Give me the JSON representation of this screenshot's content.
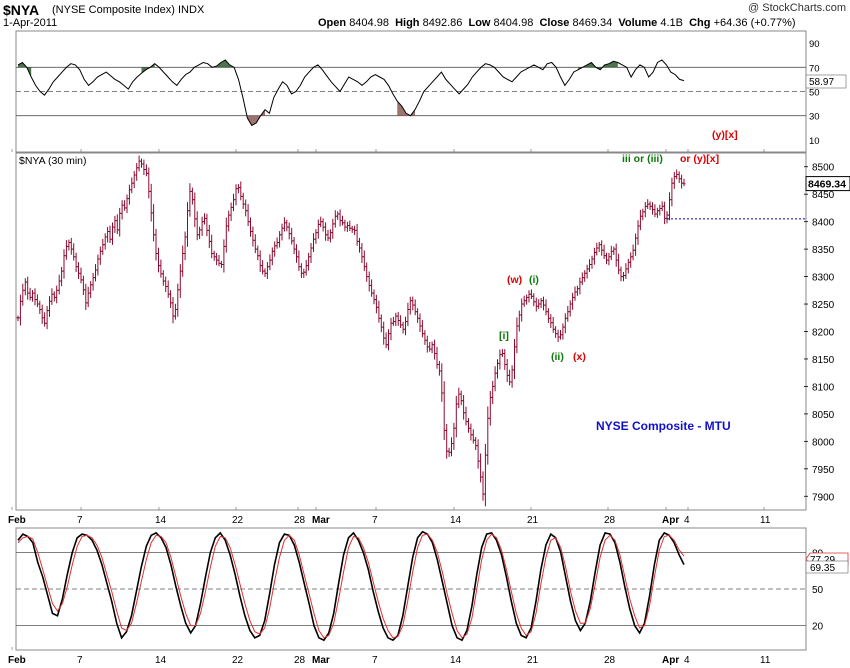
{
  "header": {
    "symbol": "$NYA",
    "name": "(NYSE Composite Index)",
    "exchange": "INDX",
    "date": "1-Apr-2011",
    "watermark": "@ StockCharts.com",
    "quote": {
      "open_label": "Open",
      "open": "8404.98",
      "high_label": "High",
      "high": "8492.86",
      "low_label": "Low",
      "low": "8404.98",
      "close_label": "Close",
      "close": "8469.34",
      "volume_label": "Volume",
      "volume": "4.1B",
      "chg_label": "Chg",
      "chg": "+64.36 (+0.77%)"
    }
  },
  "colors": {
    "price_bar": "#8b0a2e",
    "rsi_line": "#000000",
    "rsi_overbought_fill": "#2e5a2a",
    "rsi_oversold_fill": "#8b5a55",
    "stoch_k": "#000000",
    "stoch_d": "#e03030",
    "wave_red": "#dd0000",
    "wave_green": "#0a7a0a",
    "annotation_blue": "#1010cc",
    "axis_label_bg": "#ffffff"
  },
  "chart_data": [
    {
      "type": "line",
      "panel": "rsi",
      "y_ticks": [
        90,
        70,
        50,
        30,
        10
      ],
      "ylim": [
        0,
        100
      ],
      "reference_lines": [
        70,
        50,
        30
      ],
      "last_value": "58.97",
      "values": [
        72,
        74,
        70,
        62,
        55,
        50,
        47,
        52,
        58,
        62,
        66,
        70,
        73,
        72,
        68,
        60,
        55,
        58,
        62,
        64,
        66,
        63,
        60,
        58,
        55,
        52,
        58,
        62,
        65,
        68,
        70,
        73,
        70,
        66,
        62,
        58,
        55,
        60,
        64,
        66,
        70,
        72,
        74,
        73,
        70,
        71,
        74,
        76,
        72,
        70,
        60,
        45,
        28,
        22,
        24,
        30,
        35,
        32,
        45,
        52,
        58,
        55,
        48,
        50,
        55,
        62,
        66,
        70,
        72,
        68,
        63,
        58,
        54,
        50,
        56,
        62,
        60,
        58,
        55,
        58,
        62,
        64,
        62,
        60,
        55,
        48,
        42,
        38,
        32,
        30,
        35,
        42,
        50,
        54,
        58,
        62,
        66,
        60,
        56,
        52,
        48,
        52,
        56,
        62,
        66,
        70,
        73,
        72,
        70,
        66,
        62,
        60,
        58,
        62,
        66,
        68,
        70,
        72,
        70,
        68,
        73,
        74,
        70,
        62,
        55,
        60,
        66,
        68,
        70,
        72,
        74,
        70,
        68,
        72,
        73,
        75,
        74,
        72,
        70,
        62,
        68,
        72,
        70,
        62,
        66,
        74,
        76,
        72,
        66,
        64,
        60,
        59
      ],
      "overbought_segments": [
        [
          0,
          3
        ],
        [
          28,
          31
        ],
        [
          44,
          49
        ],
        [
          127,
          136
        ]
      ],
      "oversold_segments": [
        [
          52,
          56
        ],
        [
          86,
          90
        ]
      ]
    },
    {
      "type": "line",
      "panel": "price",
      "title": "$NYA (30 min)",
      "y_ticks": [
        8500,
        8450,
        8400,
        8350,
        8300,
        8250,
        8200,
        8150,
        8100,
        8050,
        8000,
        7950,
        7900
      ],
      "ylim": [
        7875,
        8525
      ],
      "last_value": "8469.34",
      "reference_price": 8404.98,
      "x_ticks": [
        "Feb",
        "7",
        "14",
        "22",
        "28",
        "Mar",
        "7",
        "14",
        "21",
        "28",
        "Apr",
        "4",
        "11"
      ],
      "values": [
        8225,
        8255,
        8275,
        8290,
        8270,
        8262,
        8270,
        8258,
        8250,
        8240,
        8225,
        8215,
        8238,
        8255,
        8268,
        8262,
        8275,
        8292,
        8310,
        8338,
        8355,
        8362,
        8350,
        8336,
        8318,
        8306,
        8294,
        8276,
        8252,
        8270,
        8285,
        8298,
        8312,
        8332,
        8346,
        8358,
        8372,
        8382,
        8368,
        8390,
        8402,
        8385,
        8415,
        8430,
        8425,
        8442,
        8458,
        8470,
        8485,
        8498,
        8510,
        8505,
        8495,
        8488,
        8455,
        8416,
        8376,
        8342,
        8320,
        8305,
        8292,
        8282,
        8268,
        8252,
        8228,
        8240,
        8276,
        8310,
        8342,
        8372,
        8420,
        8455,
        8440,
        8405,
        8376,
        8385,
        8400,
        8406,
        8384,
        8364,
        8342,
        8336,
        8330,
        8324,
        8322,
        8355,
        8392,
        8412,
        8426,
        8440,
        8460,
        8462,
        8446,
        8432,
        8420,
        8400,
        8382,
        8366,
        8350,
        8338,
        8320,
        8310,
        8306,
        8318,
        8330,
        8346,
        8356,
        8362,
        8376,
        8388,
        8398,
        8390,
        8378,
        8365,
        8350,
        8336,
        8318,
        8306,
        8308,
        8320,
        8336,
        8352,
        8368,
        8380,
        8395,
        8400,
        8390,
        8376,
        8370,
        8380,
        8396,
        8410,
        8414,
        8402,
        8398,
        8390,
        8393,
        8388,
        8386,
        8384,
        8364,
        8352,
        8336,
        8318,
        8300,
        8284,
        8270,
        8258,
        8244,
        8224,
        8208,
        8188,
        8176,
        8196,
        8215,
        8218,
        8228,
        8220,
        8212,
        8204,
        8218,
        8240,
        8256,
        8248,
        8236,
        8224,
        8210,
        8196,
        8184,
        8172,
        8168,
        8176,
        8160,
        8140,
        8128,
        8088,
        8020,
        7982,
        7980,
        7996,
        8024,
        8068,
        8086,
        8074,
        8052,
        8036,
        8024,
        8012,
        8002,
        7992,
        7964,
        7935,
        7904,
        7975,
        8042,
        8080,
        8100,
        8124,
        8142,
        8158,
        8160,
        8140,
        8120,
        8108,
        8130,
        8172,
        8210,
        8230,
        8250,
        8256,
        8262,
        8268,
        8264,
        8254,
        8246,
        8250,
        8256,
        8248,
        8236,
        8224,
        8216,
        8204,
        8196,
        8190,
        8194,
        8208,
        8224,
        8236,
        8250,
        8262,
        8272,
        8278,
        8290,
        8298,
        8306,
        8314,
        8322,
        8332,
        8344,
        8352,
        8358,
        8348,
        8338,
        8330,
        8336,
        8346,
        8350,
        8330,
        8312,
        8300,
        8302,
        8314,
        8326,
        8336,
        8348,
        8370,
        8392,
        8410,
        8418,
        8428,
        8432,
        8428,
        8422,
        8414,
        8420,
        8424,
        8428,
        8406,
        8412,
        8440,
        8470,
        8482,
        8486,
        8478,
        8470,
        8469
      ]
    },
    {
      "type": "line",
      "panel": "stochastic",
      "y_ticks": [
        80,
        50,
        20
      ],
      "ylim": [
        0,
        100
      ],
      "reference_lines": [
        80,
        50,
        20
      ],
      "k_last": "69.35",
      "d_last": "77.29",
      "k_values": [
        90,
        95,
        93,
        88,
        72,
        60,
        45,
        30,
        28,
        42,
        62,
        80,
        92,
        95,
        94,
        90,
        82,
        70,
        55,
        40,
        22,
        10,
        15,
        28,
        48,
        68,
        85,
        94,
        96,
        92,
        84,
        70,
        52,
        36,
        22,
        14,
        20,
        38,
        60,
        80,
        92,
        96,
        90,
        78,
        62,
        44,
        28,
        16,
        10,
        12,
        24,
        46,
        70,
        88,
        95,
        94,
        86,
        72,
        55,
        38,
        20,
        10,
        8,
        14,
        30,
        55,
        78,
        92,
        96,
        90,
        80,
        66,
        48,
        32,
        18,
        10,
        8,
        12,
        28,
        52,
        76,
        92,
        97,
        95,
        88,
        74,
        56,
        38,
        20,
        10,
        8,
        16,
        36,
        62,
        84,
        95,
        96,
        90,
        78,
        60,
        40,
        22,
        12,
        10,
        18,
        40,
        66,
        86,
        95,
        92,
        80,
        60,
        40,
        24,
        16,
        22,
        40,
        64,
        86,
        96,
        95,
        88,
        72,
        52,
        34,
        20,
        14,
        22,
        44,
        70,
        90,
        96,
        94,
        88,
        78,
        70
      ],
      "d_values": [
        88,
        92,
        93,
        91,
        80,
        66,
        52,
        38,
        32,
        38,
        52,
        70,
        85,
        93,
        94,
        92,
        86,
        76,
        62,
        48,
        32,
        18,
        16,
        22,
        38,
        56,
        74,
        88,
        94,
        93,
        88,
        76,
        60,
        44,
        30,
        20,
        20,
        30,
        48,
        68,
        85,
        93,
        92,
        84,
        70,
        54,
        38,
        24,
        15,
        13,
        18,
        34,
        56,
        76,
        90,
        94,
        90,
        78,
        62,
        46,
        30,
        16,
        10,
        12,
        22,
        42,
        64,
        84,
        93,
        92,
        84,
        72,
        56,
        40,
        26,
        16,
        10,
        11,
        20,
        40,
        64,
        84,
        94,
        95,
        90,
        80,
        64,
        46,
        30,
        16,
        10,
        13,
        26,
        50,
        74,
        90,
        95,
        92,
        82,
        66,
        48,
        30,
        18,
        12,
        15,
        30,
        54,
        76,
        90,
        92,
        84,
        68,
        48,
        32,
        22,
        22,
        34,
        54,
        76,
        90,
        94,
        90,
        78,
        60,
        42,
        28,
        18,
        20,
        36,
        60,
        82,
        93,
        94,
        90,
        82,
        77
      ]
    }
  ],
  "labels": {
    "wave_y_x_top": "(y)[x]",
    "wave_iii": "iii or (iii)",
    "wave_or_y_x": "or (y)[x]",
    "wave_w": "(w)",
    "wave_i_paren": "(i)",
    "wave_i_bracket": "[i]",
    "wave_ii": "(ii)",
    "wave_x": "(x)",
    "chart_annotation": "NYSE Composite - MTU"
  }
}
